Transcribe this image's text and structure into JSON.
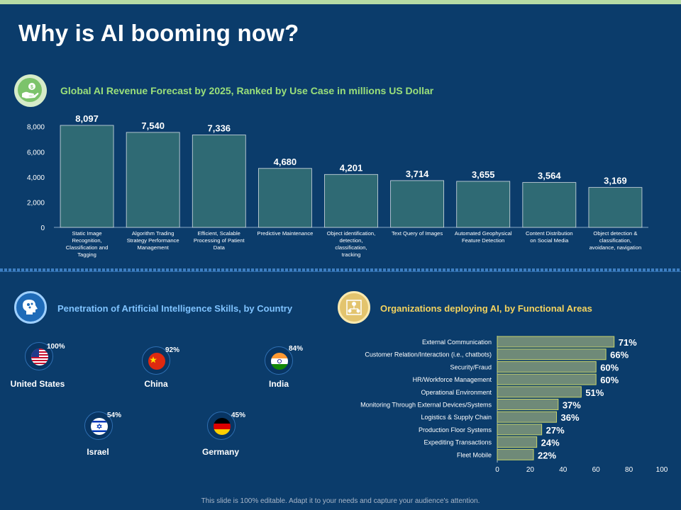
{
  "title": "Why is AI booming now?",
  "section1": {
    "title": "Global AI Revenue Forecast by 2025, Ranked by Use Case in millions US Dollar",
    "icon": "money-hand-icon"
  },
  "section2": {
    "title": "Penetration of Artificial Intelligence Skills, by Country",
    "icon": "brain-head-icon"
  },
  "section3": {
    "title": "Organizations deploying AI, by Functional Areas",
    "icon": "organization-network-icon"
  },
  "countries": [
    {
      "name": "United States",
      "pct": "100%",
      "flag": "us-flag-icon"
    },
    {
      "name": "China",
      "pct": "92%",
      "flag": "china-flag-icon"
    },
    {
      "name": "India",
      "pct": "84%",
      "flag": "india-flag-icon"
    },
    {
      "name": "Israel",
      "pct": "54%",
      "flag": "israel-flag-icon"
    },
    {
      "name": "Germany",
      "pct": "45%",
      "flag": "germany-flag-icon"
    }
  ],
  "footer": "This slide is 100% editable. Adapt it to your needs and capture your audience's attention.",
  "colors": {
    "background": "#0b3c6b",
    "bar1": "#2f6a74",
    "bar2": "#6f8a78",
    "bar2_border": "#c9d46b",
    "accent_green": "#9be07a",
    "accent_blue": "#7fc3ff",
    "accent_yellow": "#f4d35e"
  },
  "chart_data": [
    {
      "type": "bar",
      "title": "Global AI Revenue Forecast by 2025, Ranked by Use Case in millions US Dollar",
      "categories": [
        "Static Image Recognition, Classification and Tagging",
        "Algorithm Trading Strategy Performance Management",
        "Efficient, Scalable Processing of Patient Data",
        "Predictive Maintenance",
        "Object identification, detection, classification, tracking",
        "Text Query of Images",
        "Automated Geophysical Feature Detection",
        "Content Distribution on Social Media",
        "Object detection & classification, avoidance, navigation"
      ],
      "values": [
        8097,
        7540,
        7336,
        4680,
        4201,
        3714,
        3655,
        3564,
        3169
      ],
      "value_labels": [
        "8,097",
        "7,540",
        "7,336",
        "4,680",
        "4,201",
        "3,714",
        "3,655",
        "3,564",
        "3,169"
      ],
      "yticks": [
        "0",
        "2,000",
        "4,000",
        "6,000",
        "8,000"
      ],
      "ylim": [
        0,
        8097
      ],
      "xlabel": "",
      "ylabel": ""
    },
    {
      "type": "bar",
      "orientation": "horizontal",
      "title": "Organizations deploying AI, by Functional Areas",
      "categories": [
        "External Communication",
        "Customer Relation/Interaction (i.e., chatbots)",
        "Security/Fraud",
        "HR/Workforce Management",
        "Operational Environment",
        "Monitoring Through External Devices/Systems",
        "Logistics & Supply Chain",
        "Production Floor Systems",
        "Expediting Transactions",
        "Fleet Mobile"
      ],
      "values": [
        71,
        66,
        60,
        60,
        51,
        37,
        36,
        27,
        24,
        22
      ],
      "value_labels": [
        "71%",
        "66%",
        "60%",
        "60%",
        "51%",
        "37%",
        "36%",
        "27%",
        "24%",
        "22%"
      ],
      "xticks": [
        "0",
        "20",
        "40",
        "60",
        "80",
        "100"
      ],
      "xlim": [
        0,
        100
      ]
    }
  ]
}
